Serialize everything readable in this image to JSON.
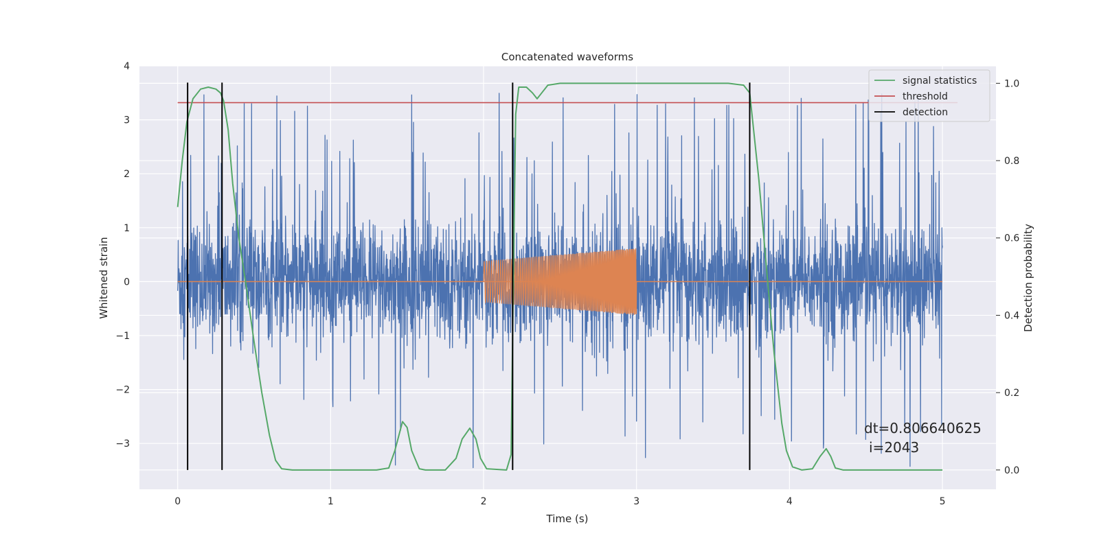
{
  "chart_data": {
    "type": "line",
    "title": "Concatenated waveforms",
    "xlabel": "Time (s)",
    "ylabel": "Whitened strain",
    "y2label": "Detection probability",
    "xlim": [
      -0.25,
      5.35
    ],
    "ylim": [
      -3.85,
      4.0
    ],
    "y2lim": [
      -0.05,
      1.045
    ],
    "xticks": [
      "0",
      "1",
      "2",
      "3",
      "4",
      "5"
    ],
    "yticks": [
      "−3",
      "−2",
      "−1",
      "0",
      "1",
      "2",
      "3",
      "4"
    ],
    "y2ticks": [
      "0.0",
      "0.2",
      "0.4",
      "0.6",
      "0.8",
      "1.0"
    ],
    "grid": true,
    "legend_position": "top-right",
    "colors": {
      "strain": "#4c72b0",
      "waveform": "#dd8452",
      "signal": "#55a868",
      "threshold": "#c44e52",
      "detection": "#000000",
      "background": "#eaeaf2",
      "grid": "#ffffff"
    },
    "series": [
      {
        "name": "",
        "axis": "left",
        "kind": "noise",
        "x_range": [
          0,
          5
        ],
        "sigma": 0.55,
        "spike_max": 3.65,
        "spike_min": -3.45
      },
      {
        "name": "",
        "axis": "left",
        "kind": "chirp",
        "flat": [
          0,
          5
        ],
        "chirp_range": [
          2.0,
          3.0
        ],
        "amplitude_start": 0.38,
        "amplitude_end": 0.62
      },
      {
        "name": "signal statistics",
        "axis": "right",
        "points": [
          [
            0.0,
            0.68
          ],
          [
            0.03,
            0.8
          ],
          [
            0.06,
            0.9
          ],
          [
            0.1,
            0.96
          ],
          [
            0.15,
            0.985
          ],
          [
            0.2,
            0.99
          ],
          [
            0.25,
            0.985
          ],
          [
            0.28,
            0.975
          ],
          [
            0.3,
            0.955
          ],
          [
            0.33,
            0.88
          ],
          [
            0.36,
            0.74
          ],
          [
            0.4,
            0.6
          ],
          [
            0.45,
            0.47
          ],
          [
            0.5,
            0.33
          ],
          [
            0.55,
            0.2
          ],
          [
            0.6,
            0.09
          ],
          [
            0.64,
            0.025
          ],
          [
            0.68,
            0.003
          ],
          [
            0.75,
            0.0
          ],
          [
            1.3,
            0.0
          ],
          [
            1.38,
            0.005
          ],
          [
            1.42,
            0.05
          ],
          [
            1.47,
            0.125
          ],
          [
            1.5,
            0.11
          ],
          [
            1.53,
            0.05
          ],
          [
            1.58,
            0.003
          ],
          [
            1.62,
            0.0
          ],
          [
            1.75,
            0.0
          ],
          [
            1.82,
            0.03
          ],
          [
            1.86,
            0.08
          ],
          [
            1.91,
            0.108
          ],
          [
            1.95,
            0.08
          ],
          [
            1.98,
            0.03
          ],
          [
            2.02,
            0.003
          ],
          [
            2.15,
            0.0
          ],
          [
            2.18,
            0.04
          ],
          [
            2.195,
            0.5
          ],
          [
            2.21,
            0.92
          ],
          [
            2.23,
            0.99
          ],
          [
            2.28,
            0.99
          ],
          [
            2.32,
            0.975
          ],
          [
            2.35,
            0.96
          ],
          [
            2.38,
            0.975
          ],
          [
            2.42,
            0.995
          ],
          [
            2.5,
            1.0
          ],
          [
            3.6,
            1.0
          ],
          [
            3.7,
            0.995
          ],
          [
            3.74,
            0.975
          ],
          [
            3.76,
            0.9
          ],
          [
            3.8,
            0.75
          ],
          [
            3.85,
            0.52
          ],
          [
            3.9,
            0.3
          ],
          [
            3.95,
            0.12
          ],
          [
            3.98,
            0.05
          ],
          [
            4.02,
            0.008
          ],
          [
            4.08,
            0.0
          ],
          [
            4.15,
            0.003
          ],
          [
            4.2,
            0.035
          ],
          [
            4.24,
            0.055
          ],
          [
            4.27,
            0.035
          ],
          [
            4.3,
            0.005
          ],
          [
            4.35,
            0.0
          ],
          [
            5.0,
            0.0
          ]
        ]
      },
      {
        "name": "threshold",
        "axis": "right",
        "x_range": [
          0,
          5
        ],
        "value": 0.95
      },
      {
        "name": "detection",
        "axis": "right",
        "x": [
          0.065,
          0.29,
          2.19,
          3.74
        ],
        "y_range": [
          0.0,
          1.0
        ]
      }
    ],
    "annotations": [
      "dt=0.806640625",
      "i=2043"
    ]
  }
}
